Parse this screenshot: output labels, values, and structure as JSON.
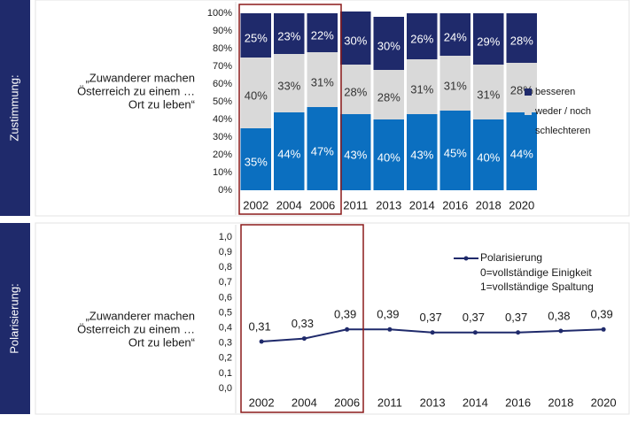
{
  "chart_data": [
    {
      "type": "stacked_bar",
      "panel_label": "Zustimmung:",
      "label_lines": [
        "„Zuwanderer machen",
        "Österreich zu einem …",
        "Ort zu leben“"
      ],
      "categories": [
        "2002",
        "2004",
        "2006",
        "2011",
        "2013",
        "2014",
        "2016",
        "2018",
        "2020"
      ],
      "series": [
        {
          "name": "schlechteren",
          "color": "#0b6fc0",
          "values": [
            35,
            44,
            47,
            43,
            40,
            43,
            45,
            40,
            44
          ],
          "value_labels": [
            "35%",
            "44%",
            "47%",
            "43%",
            "40%",
            "43%",
            "45%",
            "40%",
            "44%"
          ]
        },
        {
          "name": "weder / noch",
          "color": "#d9d9d9",
          "values": [
            40,
            33,
            31,
            28,
            28,
            31,
            31,
            31,
            28
          ],
          "value_labels": [
            "40%",
            "33%",
            "31%",
            "28%",
            "28%",
            "31%",
            "31%",
            "31%",
            "28%"
          ]
        },
        {
          "name": "besseren",
          "color": "#1f2a6b",
          "values": [
            25,
            23,
            22,
            30,
            30,
            26,
            24,
            29,
            28
          ],
          "value_labels": [
            "25%",
            "23%",
            "22%",
            "30%",
            "30%",
            "26%",
            "24%",
            "29%",
            "28%"
          ]
        }
      ],
      "ylim": [
        0,
        100
      ],
      "yticks": [
        {
          "value": 0,
          "label": "0%"
        },
        {
          "value": 10,
          "label": "10%"
        },
        {
          "value": 20,
          "label": "20%"
        },
        {
          "value": 30,
          "label": "30%"
        },
        {
          "value": 40,
          "label": "40%"
        },
        {
          "value": 50,
          "label": "50%"
        },
        {
          "value": 60,
          "label": "60%"
        },
        {
          "value": 70,
          "label": "70%"
        },
        {
          "value": 80,
          "label": "80%"
        },
        {
          "value": 90,
          "label": "90%"
        },
        {
          "value": 100,
          "label": "100%"
        }
      ],
      "legend": "right"
    },
    {
      "type": "line",
      "panel_label": "Polarisierung:",
      "label_lines": [
        "„Zuwanderer machen",
        "Österreich zu einem …",
        "Ort zu leben“"
      ],
      "categories": [
        "2002",
        "2004",
        "2006",
        "2011",
        "2013",
        "2014",
        "2016",
        "2018",
        "2020"
      ],
      "series": [
        {
          "name": "Polarisierung",
          "color": "#1f2a6b",
          "values": [
            0.31,
            0.33,
            0.39,
            0.39,
            0.37,
            0.37,
            0.37,
            0.38,
            0.39
          ],
          "value_labels": [
            "0,31",
            "0,33",
            "0,39",
            "0,39",
            "0,37",
            "0,37",
            "0,37",
            "0,38",
            "0,39"
          ]
        }
      ],
      "legend_notes": [
        "0=vollständige Einigkeit",
        "1=vollständige Spaltung"
      ],
      "ylim": [
        0,
        1
      ],
      "yticks": [
        {
          "value": 0,
          "label": "0,0"
        },
        {
          "value": 0.1,
          "label": "0,1"
        },
        {
          "value": 0.2,
          "label": "0,2"
        },
        {
          "value": 0.3,
          "label": "0,3"
        },
        {
          "value": 0.4,
          "label": "0,4"
        },
        {
          "value": 0.5,
          "label": "0,5"
        },
        {
          "value": 0.6,
          "label": "0,6"
        },
        {
          "value": 0.7,
          "label": "0,7"
        },
        {
          "value": 0.8,
          "label": "0,8"
        },
        {
          "value": 0.9,
          "label": "0,9"
        },
        {
          "value": 1,
          "label": "1,0"
        }
      ],
      "legend": "upper right"
    }
  ]
}
